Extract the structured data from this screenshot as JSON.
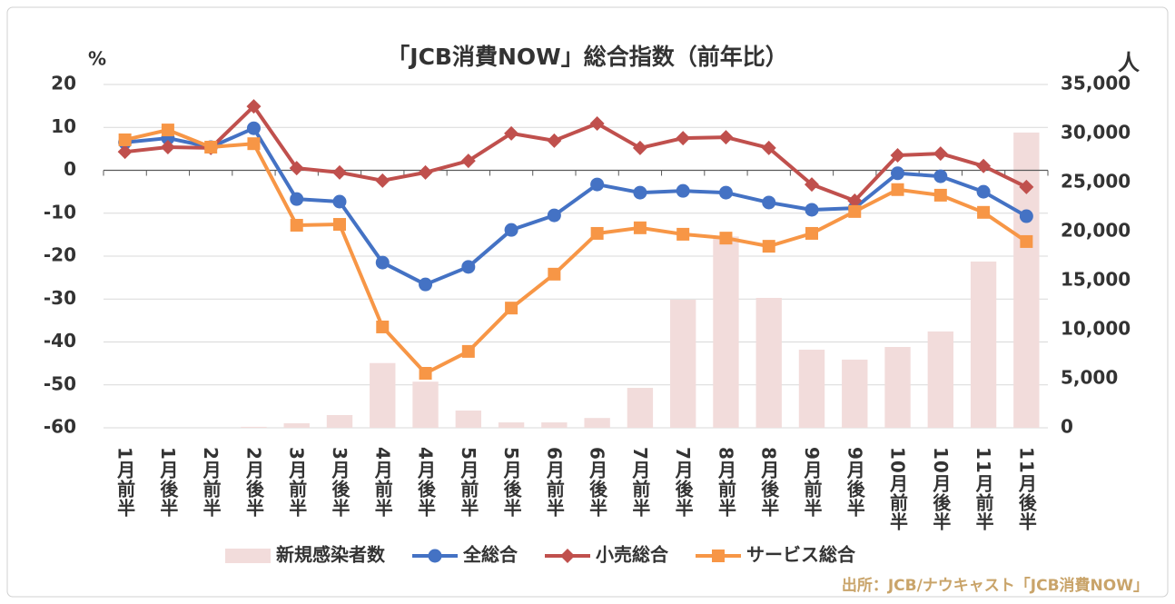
{
  "chart_data": {
    "type": "line",
    "title": "「JCB消費NOW」総合指数（前年比）",
    "y_label": "%",
    "y2_label": "人",
    "source": "出所：JCB/ナウキャスト「JCB消費NOW」",
    "categories": [
      "1月前半",
      "1月後半",
      "2月前半",
      "2月後半",
      "3月前半",
      "3月後半",
      "4月前半",
      "4月後半",
      "5月前半",
      "5月後半",
      "6月前半",
      "6月後半",
      "7月前半",
      "7月後半",
      "8月前半",
      "8月後半",
      "9月前半",
      "9月後半",
      "10月前半",
      "10月後半",
      "11月前半",
      "11月後半"
    ],
    "series": [
      {
        "name": "新規感染者数",
        "type": "bar",
        "axis": "y2",
        "color": "#f2dcdb",
        "values": [
          0,
          0,
          0,
          100,
          460,
          1300,
          6600,
          4700,
          1760,
          550,
          550,
          1000,
          4070,
          13060,
          19500,
          13240,
          7960,
          6950,
          8240,
          9820,
          16950,
          30100
        ]
      },
      {
        "name": "全総合",
        "type": "line",
        "marker": "circle",
        "color": "#4472c4",
        "values": [
          6.5,
          7.5,
          5.4,
          9.8,
          -6.7,
          -7.3,
          -21.5,
          -26.6,
          -22.5,
          -13.9,
          -10.5,
          -3.3,
          -5.2,
          -4.8,
          -5.2,
          -7.5,
          -9.2,
          -8.8,
          -0.7,
          -1.4,
          -5.0,
          -10.7
        ]
      },
      {
        "name": "小売総合",
        "type": "line",
        "marker": "diamond",
        "color": "#c0504d",
        "values": [
          4.3,
          5.4,
          5.2,
          14.9,
          0.5,
          -0.5,
          -2.4,
          -0.5,
          2.2,
          8.6,
          6.9,
          10.9,
          5.2,
          7.5,
          7.7,
          5.2,
          -3.3,
          -7.1,
          3.5,
          3.9,
          1.0,
          -3.9
        ]
      },
      {
        "name": "サービス総合",
        "type": "line",
        "marker": "square",
        "color": "#f79646",
        "values": [
          7.1,
          9.4,
          5.4,
          6.2,
          -12.8,
          -12.6,
          -36.5,
          -47.3,
          -42.2,
          -32.1,
          -24.2,
          -14.7,
          -13.4,
          -14.9,
          -15.8,
          -17.7,
          -14.7,
          -9.6,
          -4.5,
          -5.8,
          -9.8,
          -16.6
        ]
      }
    ],
    "ylim": [
      -60,
      20
    ],
    "yticks": [
      -60,
      -50,
      -40,
      -30,
      -20,
      -10,
      0,
      10,
      20
    ],
    "y2lim": [
      0,
      35000
    ],
    "y2ticks": [
      0,
      {
        "value": 5000,
        "label": "5,000"
      },
      {
        "value": 10000,
        "label": "10,000"
      },
      {
        "value": 15000,
        "label": "15,000"
      },
      {
        "value": 20000,
        "label": "20,000"
      },
      {
        "value": 25000,
        "label": "25,000"
      },
      {
        "value": 30000,
        "label": "30,000"
      },
      {
        "value": 35000,
        "label": "35,000"
      }
    ],
    "grid": true,
    "legend": "bottom"
  }
}
